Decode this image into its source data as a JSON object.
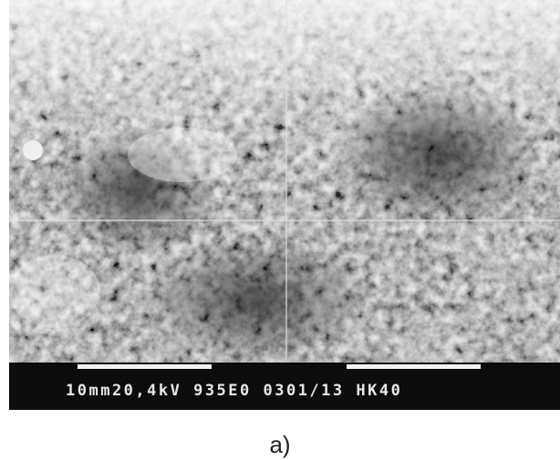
{
  "figure": {
    "info_bar": "10mm20,4kV 935E0 0301/13 HK40",
    "caption": "a)"
  }
}
